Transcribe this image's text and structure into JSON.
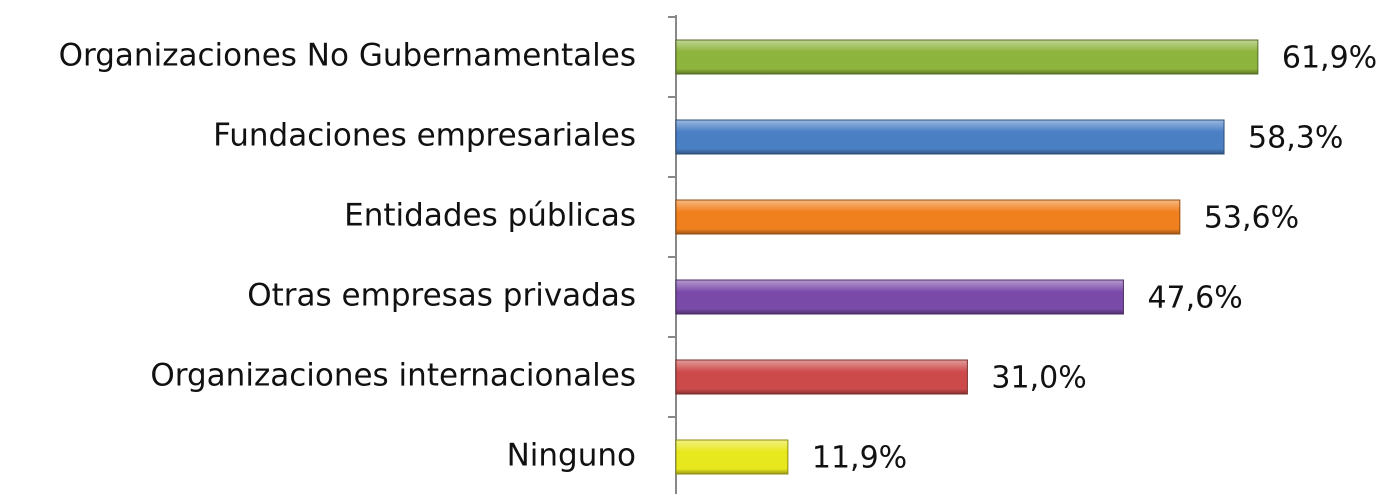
{
  "chart_data": {
    "type": "bar",
    "orientation": "horizontal",
    "categories": [
      "Organizaciones No Gubernamentales",
      "Fundaciones empresariales",
      "Entidades públicas",
      "Otras empresas privadas",
      "Organizaciones internacionales",
      "Ninguno"
    ],
    "values": [
      61.9,
      58.3,
      53.6,
      47.6,
      31.0,
      11.9
    ],
    "value_labels": [
      "61,9%",
      "58,3%",
      "53,6%",
      "47,6%",
      "31,0%",
      "11,9%"
    ],
    "colors": [
      "#8db43c",
      "#4a7fc4",
      "#f0801e",
      "#7a4aa8",
      "#cc4b4a",
      "#e8e81e"
    ]
  }
}
